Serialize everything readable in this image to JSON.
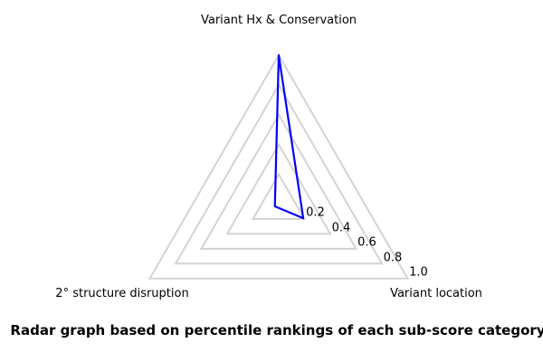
{
  "chart_data": {
    "type": "radar",
    "categories": [
      "Variant Hx & Conservation",
      "Variant location",
      "2° structure disruption"
    ],
    "series": [
      {
        "values": [
          1.0,
          0.19,
          0.03
        ],
        "color": "#0000ff"
      }
    ],
    "ticks": [
      0.2,
      0.4,
      0.6,
      0.8,
      1.0
    ],
    "tick_labels": [
      "0.2",
      "0.4",
      "0.6",
      "0.8",
      "1.0"
    ],
    "range": [
      0,
      1.0
    ],
    "grid": true,
    "grid_color": "#d3d3d3",
    "background": "#ffffff",
    "legend_position": "none",
    "caption": "Radar graph based on percentile rankings of each sub-score category"
  }
}
